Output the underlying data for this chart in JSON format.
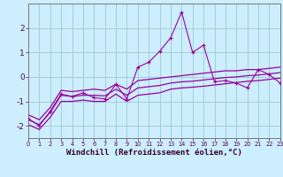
{
  "x": [
    0,
    1,
    2,
    3,
    4,
    5,
    6,
    7,
    8,
    9,
    10,
    11,
    12,
    13,
    14,
    15,
    16,
    17,
    18,
    19,
    20,
    21,
    22,
    23
  ],
  "y_main": [
    -1.7,
    -2.0,
    -1.4,
    -0.7,
    -0.8,
    -0.65,
    -0.85,
    -0.9,
    -0.3,
    -0.9,
    0.4,
    0.6,
    1.05,
    1.6,
    2.65,
    1.0,
    1.3,
    -0.2,
    -0.15,
    -0.25,
    -0.45,
    0.3,
    0.1,
    -0.25
  ],
  "y_upper": [
    -1.55,
    -1.75,
    -1.25,
    -0.55,
    -0.6,
    -0.55,
    -0.5,
    -0.55,
    -0.3,
    -0.5,
    -0.15,
    -0.1,
    -0.05,
    0.0,
    0.05,
    0.1,
    0.15,
    0.2,
    0.25,
    0.25,
    0.3,
    0.3,
    0.35,
    0.4
  ],
  "y_mid": [
    -1.75,
    -1.95,
    -1.45,
    -0.75,
    -0.8,
    -0.75,
    -0.75,
    -0.775,
    -0.5,
    -0.75,
    -0.45,
    -0.4,
    -0.35,
    -0.25,
    -0.2,
    -0.175,
    -0.125,
    -0.075,
    -0.025,
    0.0,
    0.05,
    0.075,
    0.125,
    0.175
  ],
  "y_lower": [
    -1.95,
    -2.15,
    -1.65,
    -1.0,
    -1.0,
    -0.95,
    -1.0,
    -1.0,
    -0.7,
    -1.0,
    -0.75,
    -0.7,
    -0.65,
    -0.5,
    -0.45,
    -0.42,
    -0.38,
    -0.33,
    -0.28,
    -0.23,
    -0.18,
    -0.15,
    -0.1,
    -0.05
  ],
  "color": "#990099",
  "bg_color": "#cceeff",
  "grid_color": "#99cccc",
  "xlim": [
    0,
    23
  ],
  "ylim": [
    -2.5,
    3.0
  ],
  "yticks": [
    -2,
    -1,
    0,
    1,
    2
  ],
  "xticks": [
    0,
    1,
    2,
    3,
    4,
    5,
    6,
    7,
    8,
    9,
    10,
    11,
    12,
    13,
    14,
    15,
    16,
    17,
    18,
    19,
    20,
    21,
    22,
    23
  ],
  "xlabel": "Windchill (Refroidissement éolien,°C)",
  "xlabel_fontsize": 6.5
}
